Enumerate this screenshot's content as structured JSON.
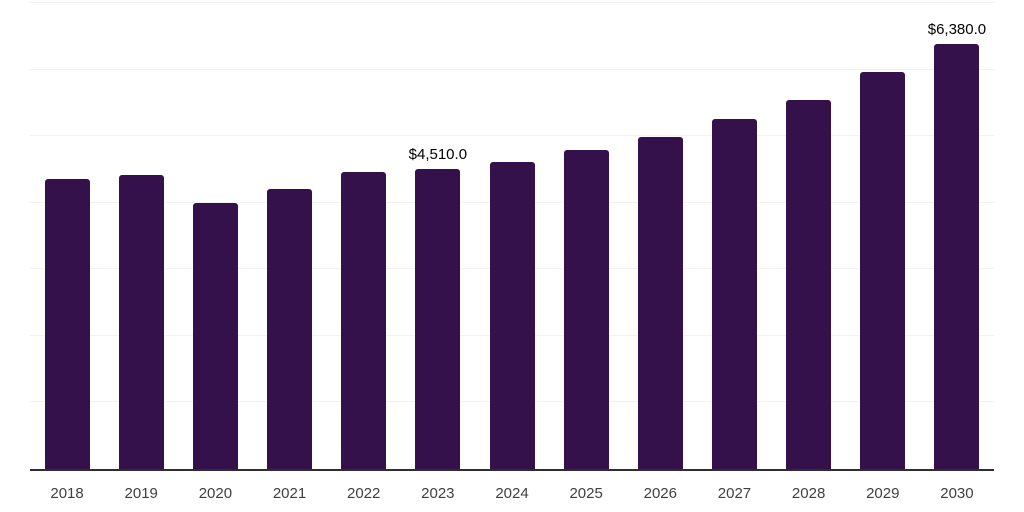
{
  "chart_data": {
    "type": "bar",
    "categories": [
      "2018",
      "2019",
      "2020",
      "2021",
      "2022",
      "2023",
      "2024",
      "2025",
      "2026",
      "2027",
      "2028",
      "2029",
      "2030"
    ],
    "values": [
      4360,
      4410,
      4000,
      4200,
      4460,
      4510,
      4610,
      4790,
      4990,
      5260,
      5550,
      5960,
      6380
    ],
    "data_labels": {
      "2023": "$4,510.0",
      "2030": "$6,380.0"
    },
    "title": "",
    "xlabel": "",
    "ylabel": "",
    "ylim": [
      0,
      7000
    ],
    "grid": true,
    "gridline_step": 1000,
    "legend": "none",
    "bar_color": "#35114b",
    "gridline_color": "#f2f2f2",
    "axis_line_color": "#2e2e2e",
    "data_label_color": "#000000",
    "tick_label_color": "#404040"
  }
}
